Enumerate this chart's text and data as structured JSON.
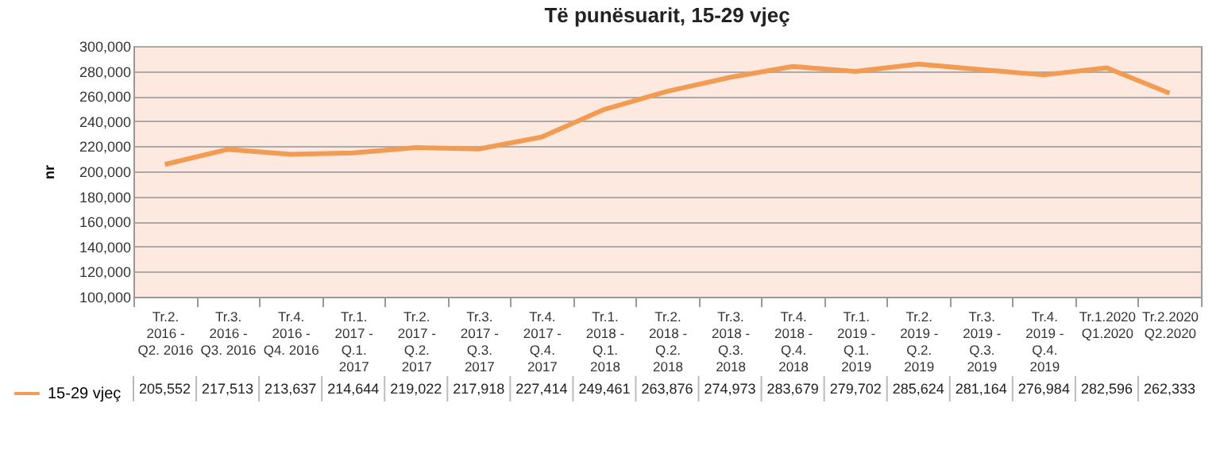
{
  "chart_data": {
    "type": "line",
    "title": "Të punësuarit, 15-29 vjeç",
    "ylabel": "nr",
    "categories": [
      "Tr.2. 2016 - Q2. 2016",
      "Tr.3. 2016 - Q3. 2016",
      "Tr.4. 2016 - Q4. 2016",
      "Tr.1. 2017 - Q.1. 2017",
      "Tr.2. 2017 - Q.2. 2017",
      "Tr.3. 2017 - Q.3. 2017",
      "Tr.4. 2017 - Q.4. 2017",
      "Tr.1. 2018 - Q.1. 2018",
      "Tr.2. 2018 - Q.2. 2018",
      "Tr.3. 2018 - Q.3. 2018",
      "Tr.4. 2018 - Q.4. 2018",
      "Tr.1. 2019 - Q.1. 2019",
      "Tr.2. 2019 - Q.2. 2019",
      "Tr.3. 2019 - Q.3. 2019",
      "Tr.4. 2019 - Q.4. 2019",
      "Tr.1.2020 Q1.2020",
      "Tr.2.2020 Q2.2020"
    ],
    "series": [
      {
        "name": "15-29 vjeç",
        "color": "#f29b52",
        "values": [
          205552,
          217513,
          213637,
          214644,
          219022,
          217918,
          227414,
          249461,
          263876,
          274973,
          283679,
          279702,
          285624,
          281164,
          276984,
          282596,
          262333
        ]
      }
    ],
    "value_labels": [
      "205,552",
      "217,513",
      "213,637",
      "214,644",
      "219,022",
      "217,918",
      "227,414",
      "249,461",
      "263,876",
      "274,973",
      "283,679",
      "279,702",
      "285,624",
      "281,164",
      "276,984",
      "282,596",
      "262,333"
    ],
    "ylim": [
      100000,
      300000
    ],
    "yticks": [
      {
        "value": 100000,
        "label": "100,000"
      },
      {
        "value": 120000,
        "label": "120,000"
      },
      {
        "value": 140000,
        "label": "140,000"
      },
      {
        "value": 160000,
        "label": "160,000"
      },
      {
        "value": 180000,
        "label": "180,000"
      },
      {
        "value": 200000,
        "label": "200,000"
      },
      {
        "value": 220000,
        "label": "220,000"
      },
      {
        "value": 240000,
        "label": "240,000"
      },
      {
        "value": 260000,
        "label": "260,000"
      },
      {
        "value": 280000,
        "label": "280,000"
      },
      {
        "value": 300000,
        "label": "300,000"
      }
    ],
    "grid": "y",
    "legend": "bottom left",
    "marker": "none",
    "line_style": "solid"
  }
}
